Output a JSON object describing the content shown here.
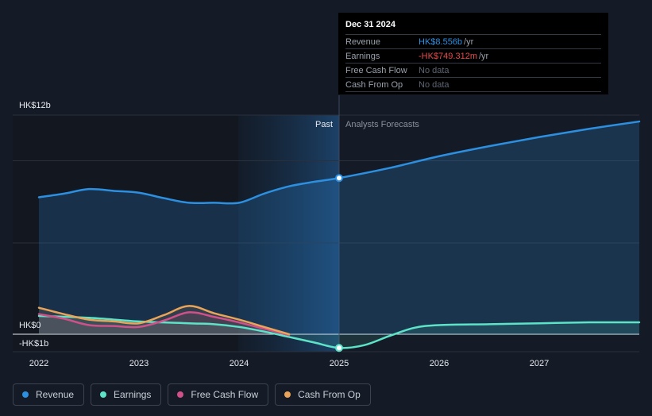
{
  "chart_data": {
    "type": "line",
    "x_ticks": [
      "2022",
      "2023",
      "2024",
      "2025",
      "2026",
      "2027"
    ],
    "y_ticks": [
      {
        "value": 12,
        "label": "HK$12b"
      },
      {
        "value": 0,
        "label": "HK$0"
      },
      {
        "value": -1,
        "label": "-HK$1b"
      }
    ],
    "ylim": [
      -1,
      12
    ],
    "section_labels": {
      "past": "Past",
      "forecast": "Analysts Forecasts"
    },
    "series": [
      {
        "name": "Revenue",
        "color": "#2d8fe0",
        "points": [
          [
            2022.0,
            7.5
          ],
          [
            2022.25,
            7.7
          ],
          [
            2022.5,
            7.95
          ],
          [
            2022.75,
            7.85
          ],
          [
            2023.0,
            7.75
          ],
          [
            2023.25,
            7.45
          ],
          [
            2023.5,
            7.2
          ],
          [
            2023.75,
            7.2
          ],
          [
            2024.0,
            7.2
          ],
          [
            2024.25,
            7.7
          ],
          [
            2024.5,
            8.1
          ],
          [
            2024.75,
            8.35
          ],
          [
            2025.0,
            8.556
          ],
          [
            2025.5,
            9.1
          ],
          [
            2026.0,
            9.75
          ],
          [
            2026.5,
            10.3
          ],
          [
            2027.0,
            10.8
          ],
          [
            2027.5,
            11.25
          ],
          [
            2028.0,
            11.65
          ]
        ]
      },
      {
        "name": "Earnings",
        "color": "#5de3c8",
        "points": [
          [
            2022.0,
            1.0
          ],
          [
            2022.5,
            0.9
          ],
          [
            2023.0,
            0.7
          ],
          [
            2023.5,
            0.6
          ],
          [
            2023.75,
            0.55
          ],
          [
            2024.0,
            0.4
          ],
          [
            2024.25,
            0.15
          ],
          [
            2024.5,
            -0.15
          ],
          [
            2024.75,
            -0.45
          ],
          [
            2025.0,
            -0.749
          ],
          [
            2025.25,
            -0.6
          ],
          [
            2025.5,
            -0.1
          ],
          [
            2025.75,
            0.35
          ],
          [
            2026.0,
            0.5
          ],
          [
            2026.5,
            0.55
          ],
          [
            2027.0,
            0.6
          ],
          [
            2027.5,
            0.65
          ],
          [
            2028.0,
            0.65
          ]
        ]
      },
      {
        "name": "Free Cash Flow",
        "color": "#d0508a",
        "points": [
          [
            2022.0,
            1.1
          ],
          [
            2022.25,
            0.85
          ],
          [
            2022.5,
            0.5
          ],
          [
            2022.75,
            0.45
          ],
          [
            2023.0,
            0.4
          ],
          [
            2023.25,
            0.75
          ],
          [
            2023.5,
            1.2
          ],
          [
            2023.75,
            0.95
          ],
          [
            2024.0,
            0.65
          ],
          [
            2024.25,
            0.3
          ],
          [
            2024.5,
            -0.05
          ]
        ]
      },
      {
        "name": "Cash From Op",
        "color": "#e8a458",
        "points": [
          [
            2022.0,
            1.45
          ],
          [
            2022.25,
            1.1
          ],
          [
            2022.5,
            0.8
          ],
          [
            2022.75,
            0.7
          ],
          [
            2023.0,
            0.6
          ],
          [
            2023.25,
            1.05
          ],
          [
            2023.5,
            1.55
          ],
          [
            2023.75,
            1.15
          ],
          [
            2024.0,
            0.8
          ],
          [
            2024.25,
            0.4
          ],
          [
            2024.5,
            0.0
          ]
        ]
      }
    ]
  },
  "tooltip": {
    "date": "Dec 31 2024",
    "rows": [
      {
        "label": "Revenue",
        "value": "HK$8.556b",
        "unit": "/yr",
        "color": "#2d8fe0"
      },
      {
        "label": "Earnings",
        "value": "-HK$749.312m",
        "unit": "/yr",
        "color": "#e64b4b"
      },
      {
        "label": "Free Cash Flow",
        "value": "No data",
        "unit": "",
        "color": "#5e6572"
      },
      {
        "label": "Cash From Op",
        "value": "No data",
        "unit": "",
        "color": "#5e6572"
      }
    ]
  },
  "legend": [
    {
      "label": "Revenue",
      "color": "#2d8fe0"
    },
    {
      "label": "Earnings",
      "color": "#5de3c8"
    },
    {
      "label": "Free Cash Flow",
      "color": "#d0508a"
    },
    {
      "label": "Cash From Op",
      "color": "#e8a458"
    }
  ]
}
